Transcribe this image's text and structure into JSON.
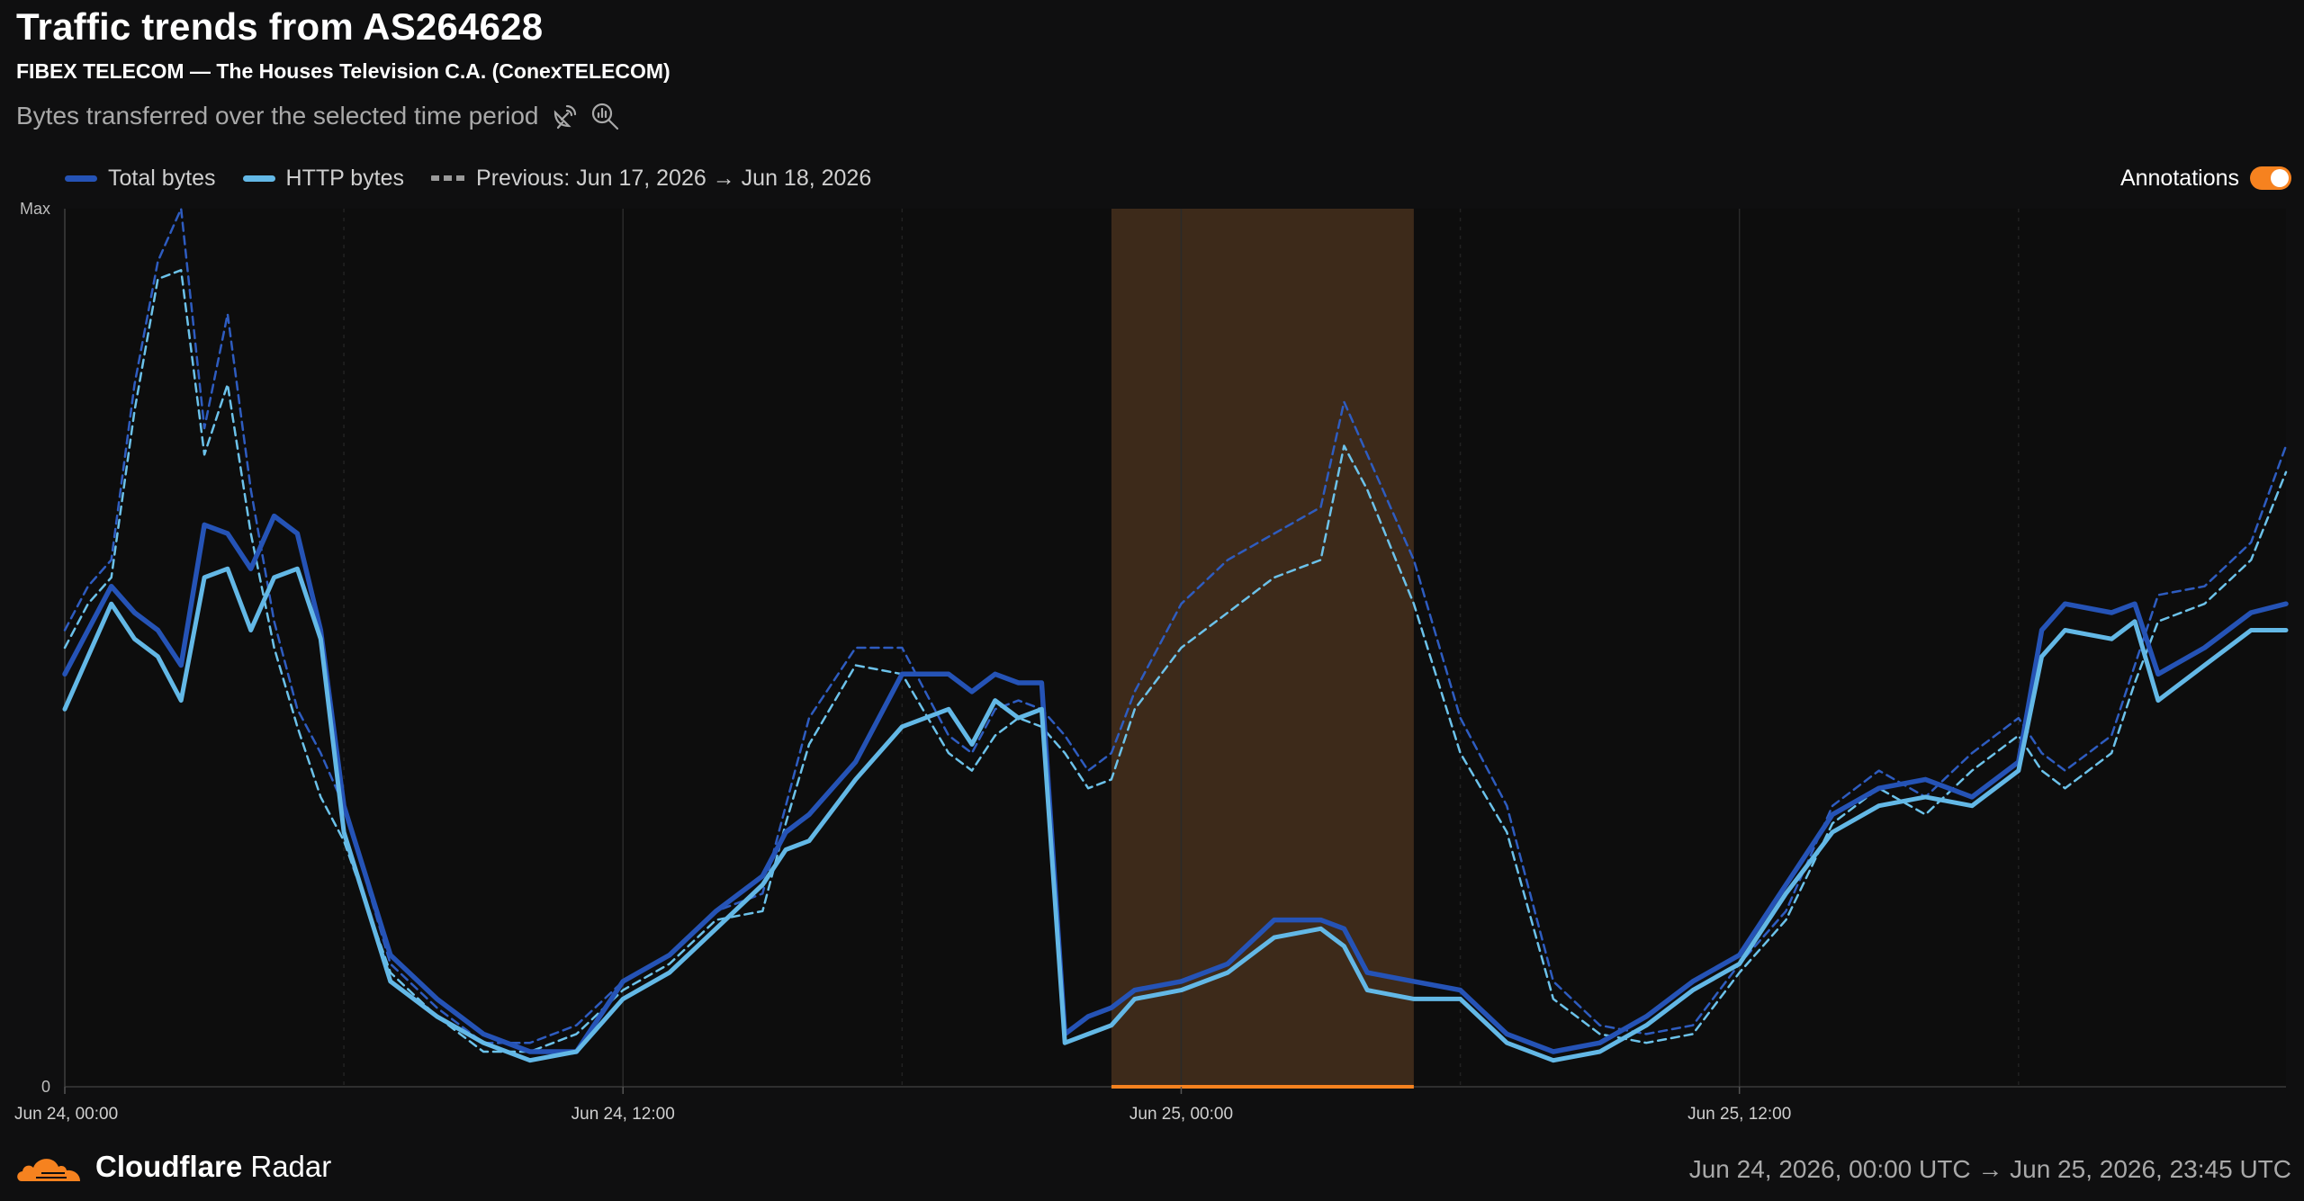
{
  "header": {
    "title": "Traffic trends from AS264628",
    "subtitle": "FIBEX TELECOM — The Houses Television C.A. (ConexTELECOM)",
    "description": "Bytes transferred over the selected time period",
    "icons": [
      "satellite-dish-icon",
      "zoom-chart-icon"
    ]
  },
  "legend": {
    "total_label": "Total bytes",
    "http_label": "HTTP bytes",
    "previous_label": "Previous: Jun 17, 2026 → Jun 18, 2026"
  },
  "annotations": {
    "label": "Annotations",
    "enabled": true
  },
  "footer": {
    "brand_bold": "Cloudflare",
    "brand_light": "Radar",
    "date_range": "Jun 24, 2026, 00:00 UTC → Jun 25, 2026, 23:45 UTC"
  },
  "colors": {
    "total": "#2553b6",
    "http": "#63b8e6",
    "previous_total": "#2e5cc0",
    "previous_http": "#6cc2ea",
    "annotation_band": "#3d2a1a",
    "annotation_line": "#f6821f"
  },
  "chart_data": {
    "type": "line",
    "y_tick_labels": [
      "Max",
      "0"
    ],
    "ylim": [
      0,
      100
    ],
    "x_tick_labels": [
      "Jun 24, 00:00",
      "Jun 24, 12:00",
      "Jun 25, 00:00",
      "Jun 25, 12:00"
    ],
    "x_tick_hours": [
      0,
      12,
      24,
      36
    ],
    "x_range_hours": [
      0,
      47.75
    ],
    "annotation_hours": [
      22.5,
      29
    ],
    "series": [
      {
        "name": "Total bytes",
        "hours": [
          0,
          0.5,
          1,
          1.5,
          2,
          2.5,
          3,
          3.5,
          4,
          4.5,
          5,
          5.5,
          6,
          7,
          8,
          9,
          10,
          11,
          12,
          13,
          14,
          15,
          15.5,
          16,
          17,
          18,
          19,
          19.5,
          20,
          20.5,
          21,
          21.5,
          22,
          22.5,
          23,
          24,
          25,
          26,
          27,
          27.5,
          28,
          29,
          30,
          31,
          32,
          33,
          34,
          35,
          36,
          37,
          38,
          39,
          40,
          41,
          42,
          42.5,
          43,
          44,
          44.5,
          45,
          46,
          47,
          47.75
        ],
        "values": [
          47,
          52,
          57,
          54,
          52,
          48,
          64,
          63,
          59,
          65,
          63,
          52,
          32,
          15,
          10,
          6,
          4,
          4,
          12,
          15,
          20,
          24,
          29,
          31,
          37,
          47,
          47,
          45,
          47,
          46,
          46,
          6,
          8,
          9,
          11,
          12,
          14,
          19,
          19,
          18,
          13,
          12,
          11,
          6,
          4,
          5,
          8,
          12,
          15,
          23,
          31,
          34,
          35,
          33,
          37,
          52,
          55,
          54,
          55,
          47,
          50,
          54,
          55
        ]
      },
      {
        "name": "HTTP bytes",
        "hours": [
          0,
          0.5,
          1,
          1.5,
          2,
          2.5,
          3,
          3.5,
          4,
          4.5,
          5,
          5.5,
          6,
          7,
          8,
          9,
          10,
          11,
          12,
          13,
          14,
          15,
          15.5,
          16,
          17,
          18,
          19,
          19.5,
          20,
          20.5,
          21,
          21.5,
          22,
          22.5,
          23,
          24,
          25,
          26,
          27,
          27.5,
          28,
          29,
          30,
          31,
          32,
          33,
          34,
          35,
          36,
          37,
          38,
          39,
          40,
          41,
          42,
          42.5,
          43,
          44,
          44.5,
          45,
          46,
          47,
          47.75
        ],
        "values": [
          43,
          49,
          55,
          51,
          49,
          44,
          58,
          59,
          52,
          58,
          59,
          51,
          29,
          12,
          8,
          5,
          3,
          4,
          10,
          13,
          18,
          23,
          27,
          28,
          35,
          41,
          43,
          39,
          44,
          42,
          43,
          5,
          6,
          7,
          10,
          11,
          13,
          17,
          18,
          16,
          11,
          10,
          10,
          5,
          3,
          4,
          7,
          11,
          14,
          22,
          29,
          32,
          33,
          32,
          36,
          49,
          52,
          51,
          53,
          44,
          48,
          52,
          52
        ]
      },
      {
        "name": "Previous: Total bytes",
        "hours": [
          0,
          0.5,
          1,
          1.5,
          2,
          2.5,
          3,
          3.5,
          4,
          4.5,
          5,
          5.5,
          6,
          7,
          8,
          9,
          10,
          11,
          12,
          13,
          14,
          15,
          15.5,
          16,
          17,
          18,
          19,
          19.5,
          20,
          20.5,
          21,
          21.5,
          22,
          22.5,
          23,
          24,
          25,
          26,
          27,
          27.5,
          28,
          29,
          30,
          31,
          32,
          33,
          34,
          35,
          36,
          37,
          38,
          39,
          40,
          41,
          42,
          42.5,
          43,
          44,
          44.5,
          45,
          46,
          47,
          47.75
        ],
        "values": [
          52,
          57,
          60,
          80,
          94,
          100,
          75,
          88,
          68,
          53,
          43,
          38,
          32,
          14,
          9,
          5,
          5,
          7,
          12,
          15,
          20,
          22,
          32,
          42,
          50,
          50,
          40,
          38,
          43,
          44,
          43,
          40,
          36,
          38,
          45,
          55,
          60,
          63,
          66,
          78,
          72,
          60,
          42,
          32,
          12,
          7,
          6,
          7,
          14,
          20,
          32,
          36,
          33,
          38,
          42,
          38,
          36,
          40,
          48,
          56,
          57,
          62,
          73
        ]
      },
      {
        "name": "Previous: HTTP bytes",
        "hours": [
          0,
          0.5,
          1,
          1.5,
          2,
          2.5,
          3,
          3.5,
          4,
          4.5,
          5,
          5.5,
          6,
          7,
          8,
          9,
          10,
          11,
          12,
          13,
          14,
          15,
          15.5,
          16,
          17,
          18,
          19,
          19.5,
          20,
          20.5,
          21,
          21.5,
          22,
          22.5,
          23,
          24,
          25,
          26,
          27,
          27.5,
          28,
          29,
          30,
          31,
          32,
          33,
          34,
          35,
          36,
          37,
          38,
          39,
          40,
          41,
          42,
          42.5,
          43,
          44,
          44.5,
          45,
          46,
          47,
          47.75
        ],
        "values": [
          50,
          55,
          58,
          77,
          92,
          93,
          72,
          80,
          63,
          50,
          41,
          33,
          28,
          13,
          8,
          4,
          4,
          6,
          11,
          14,
          19,
          20,
          30,
          39,
          48,
          47,
          38,
          36,
          40,
          42,
          41,
          38,
          34,
          35,
          43,
          50,
          54,
          58,
          60,
          73,
          68,
          55,
          38,
          29,
          10,
          6,
          5,
          6,
          13,
          19,
          30,
          34,
          31,
          36,
          40,
          36,
          34,
          38,
          46,
          53,
          55,
          60,
          70
        ]
      }
    ]
  }
}
